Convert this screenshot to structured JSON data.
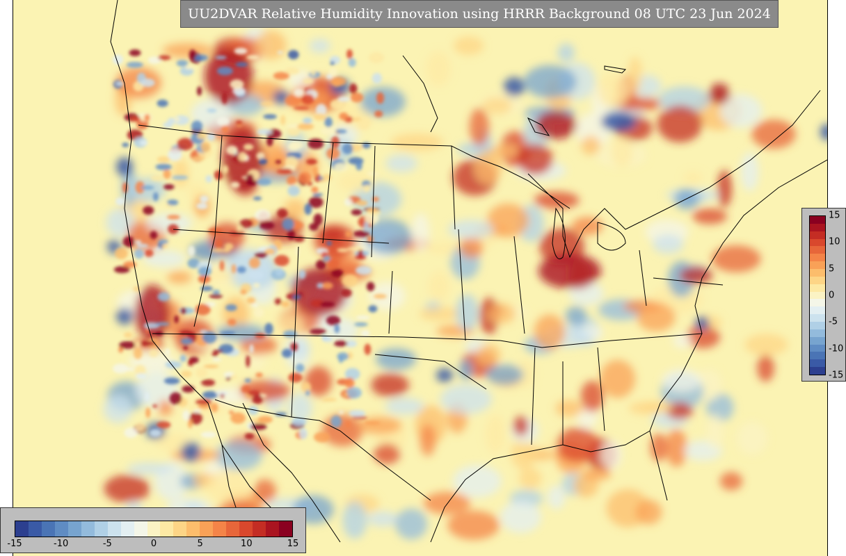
{
  "title": "UU2DVAR Relative Humidity Innovation using HRRR Background 08 UTC 23 Jun 2024",
  "colorbar": {
    "min": -15,
    "max": 15,
    "colors": [
      "#2c3f8f",
      "#3a5aa6",
      "#4a74b5",
      "#5f8cc3",
      "#77a4cf",
      "#93bbdc",
      "#b0d0e6",
      "#cce2ee",
      "#e3eff2",
      "#f4f6e8",
      "#fbf3c4",
      "#fde9a4",
      "#fdd586",
      "#fcbd6c",
      "#f9a157",
      "#f48448",
      "#e7663a",
      "#d9482d",
      "#c42d24",
      "#aa1420",
      "#8a0020"
    ],
    "horizontal_ticks": [
      "-15",
      "-10",
      "-5",
      "0",
      "5",
      "10",
      "15"
    ],
    "vertical_ticks": [
      "15",
      "10",
      "5",
      "0",
      "-5",
      "-10",
      "-15"
    ]
  },
  "map": {
    "background_color": "#fbf3b3",
    "region": "Continental United States, southern Canada, northern Mexico",
    "field": "relative humidity innovation"
  }
}
